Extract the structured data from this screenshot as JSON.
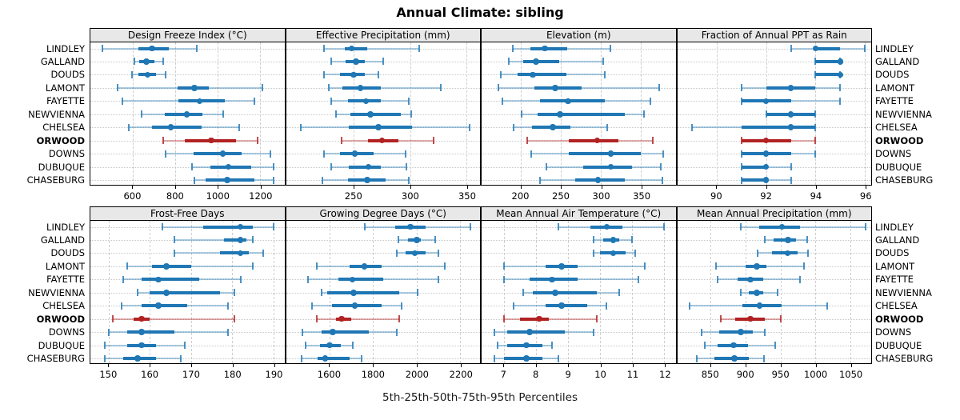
{
  "title": "Annual Climate: sibling",
  "caption": "5th-25th-50th-75th-95th Percentiles",
  "percentile_levels": [
    "5th",
    "25th",
    "50th",
    "75th",
    "95th"
  ],
  "sites": [
    "LINDLEY",
    "GALLAND",
    "DOUDS",
    "LAMONT",
    "FAYETTE",
    "NEWVIENNA",
    "CHELSEA",
    "ORWOOD",
    "DOWNS",
    "DUBUQUE",
    "CHASEBURG"
  ],
  "highlighted_site": "ORWOOD",
  "colors": {
    "series": "#1f77b4",
    "series_light": "rgba(31,119,180,0.38)",
    "series_cap": "rgba(31,119,180,0.8)",
    "highlight": "#b22222",
    "highlight_light": "rgba(178,34,34,0.38)",
    "highlight_cap": "rgba(178,34,34,0.8)",
    "strip_bg": "#e8e8e8",
    "grid": "#cccccc"
  },
  "chart_data": [
    {
      "type": "interval-dotplot",
      "title": "Design Freeze Index (°C)",
      "xlim": [
        400,
        1315
      ],
      "ticks": [
        600,
        800,
        1000,
        1200
      ],
      "series": [
        {
          "name": "LINDLEY",
          "values": [
            455,
            625,
            690,
            770,
            900
          ]
        },
        {
          "name": "GALLAND",
          "values": [
            608,
            630,
            665,
            700,
            745
          ]
        },
        {
          "name": "DOUDS",
          "values": [
            595,
            625,
            670,
            710,
            755
          ]
        },
        {
          "name": "LAMONT",
          "values": [
            530,
            810,
            890,
            960,
            1210
          ]
        },
        {
          "name": "FAYETTE",
          "values": [
            550,
            815,
            915,
            1035,
            1175
          ]
        },
        {
          "name": "NEWVIENNA",
          "values": [
            640,
            750,
            855,
            930,
            1025
          ]
        },
        {
          "name": "CHELSEA",
          "values": [
            580,
            690,
            780,
            925,
            1100
          ]
        },
        {
          "name": "ORWOOD",
          "values": [
            745,
            845,
            970,
            1085,
            1190
          ]
        },
        {
          "name": "DOWNS",
          "values": [
            755,
            885,
            1025,
            1115,
            1250
          ]
        },
        {
          "name": "DUBUQUE",
          "values": [
            880,
            965,
            1050,
            1160,
            1265
          ]
        },
        {
          "name": "CHASEBURG",
          "values": [
            890,
            945,
            1045,
            1175,
            1265
          ]
        }
      ]
    },
    {
      "type": "interval-dotplot",
      "title": "Effective Precipitation (mm)",
      "xlim": [
        190,
        362
      ],
      "ticks": [
        250,
        300,
        350
      ],
      "series": [
        {
          "name": "LINDLEY",
          "values": [
            224,
            242,
            248,
            262,
            308
          ]
        },
        {
          "name": "GALLAND",
          "values": [
            230,
            243,
            252,
            260,
            276
          ]
        },
        {
          "name": "DOUDS",
          "values": [
            224,
            238,
            250,
            260,
            272
          ]
        },
        {
          "name": "LAMONT",
          "values": [
            228,
            240,
            256,
            274,
            327
          ]
        },
        {
          "name": "FAYETTE",
          "values": [
            230,
            245,
            261,
            274,
            299
          ]
        },
        {
          "name": "NEWVIENNA",
          "values": [
            234,
            247,
            265,
            292,
            301
          ]
        },
        {
          "name": "CHELSEA",
          "values": [
            203,
            246,
            272,
            302,
            353
          ]
        },
        {
          "name": "ORWOOD",
          "values": [
            239,
            263,
            275,
            290,
            321
          ]
        },
        {
          "name": "DOWNS",
          "values": [
            224,
            238,
            251,
            268,
            296
          ]
        },
        {
          "name": "DUBUQUE",
          "values": [
            230,
            246,
            263,
            274,
            297
          ]
        },
        {
          "name": "CHASEBURG",
          "values": [
            222,
            245,
            262,
            278,
            299
          ]
        }
      ]
    },
    {
      "type": "interval-dotplot",
      "title": "Elevation (m)",
      "xlim": [
        151,
        393
      ],
      "ticks": [
        200,
        250,
        300,
        350
      ],
      "series": [
        {
          "name": "LINDLEY",
          "values": [
            190,
            212,
            230,
            258,
            312
          ]
        },
        {
          "name": "GALLAND",
          "values": [
            185,
            203,
            219,
            248,
            303
          ]
        },
        {
          "name": "DOUDS",
          "values": [
            175,
            196,
            215,
            257,
            305
          ]
        },
        {
          "name": "LAMONT",
          "values": [
            172,
            217,
            243,
            276,
            373
          ]
        },
        {
          "name": "FAYETTE",
          "values": [
            177,
            224,
            259,
            305,
            362
          ]
        },
        {
          "name": "NEWVIENNA",
          "values": [
            201,
            221,
            249,
            330,
            354
          ]
        },
        {
          "name": "CHELSEA",
          "values": [
            191,
            214,
            240,
            262,
            308
          ]
        },
        {
          "name": "ORWOOD",
          "values": [
            208,
            260,
            295,
            322,
            365
          ]
        },
        {
          "name": "DOWNS",
          "values": [
            213,
            260,
            312,
            350,
            378
          ]
        },
        {
          "name": "DUBUQUE",
          "values": [
            232,
            278,
            312,
            339,
            375
          ]
        },
        {
          "name": "CHASEBURG",
          "values": [
            224,
            268,
            296,
            330,
            377
          ]
        }
      ]
    },
    {
      "type": "interval-dotplot",
      "title": "Fraction of Annual PPT as Rain",
      "xlim": [
        88.4,
        96.25
      ],
      "ticks": [
        90,
        92,
        94,
        96
      ],
      "series": [
        {
          "name": "LINDLEY",
          "values": [
            93,
            94,
            94,
            95,
            96
          ]
        },
        {
          "name": "GALLAND",
          "values": [
            94,
            94,
            95,
            95,
            95
          ]
        },
        {
          "name": "DOUDS",
          "values": [
            94,
            94,
            95,
            95,
            95
          ]
        },
        {
          "name": "LAMONT",
          "values": [
            91,
            92,
            93,
            94,
            95
          ]
        },
        {
          "name": "FAYETTE",
          "values": [
            91,
            91,
            92,
            93,
            95
          ]
        },
        {
          "name": "NEWVIENNA",
          "values": [
            92,
            92,
            93,
            94,
            94
          ]
        },
        {
          "name": "CHELSEA",
          "values": [
            89,
            91,
            93,
            94,
            94
          ]
        },
        {
          "name": "ORWOOD",
          "values": [
            91,
            91,
            92,
            93,
            94
          ]
        },
        {
          "name": "DOWNS",
          "values": [
            91,
            91,
            92,
            93,
            94
          ]
        },
        {
          "name": "DUBUQUE",
          "values": [
            91,
            91,
            92,
            92,
            93
          ]
        },
        {
          "name": "CHASEBURG",
          "values": [
            91,
            91,
            92,
            92,
            93
          ]
        }
      ]
    },
    {
      "type": "interval-dotplot",
      "title": "Frost-Free Days",
      "xlim": [
        145.5,
        192.7
      ],
      "ticks": [
        150,
        160,
        170,
        180,
        190
      ],
      "series": [
        {
          "name": "LINDLEY",
          "values": [
            163,
            173,
            182,
            185,
            190
          ]
        },
        {
          "name": "GALLAND",
          "values": [
            166,
            178,
            182,
            183.5,
            185
          ]
        },
        {
          "name": "DOUDS",
          "values": [
            166,
            177,
            182,
            184,
            187.5
          ]
        },
        {
          "name": "LAMONT",
          "values": [
            154.5,
            160.5,
            164,
            170,
            185
          ]
        },
        {
          "name": "FAYETTE",
          "values": [
            153.5,
            158,
            162,
            172,
            182
          ]
        },
        {
          "name": "NEWVIENNA",
          "values": [
            157,
            160,
            164,
            177,
            180.5
          ]
        },
        {
          "name": "CHELSEA",
          "values": [
            153,
            158,
            162,
            169,
            179
          ]
        },
        {
          "name": "ORWOOD",
          "values": [
            151,
            156,
            158,
            160,
            180.5
          ]
        },
        {
          "name": "DOWNS",
          "values": [
            150,
            154.5,
            158,
            166,
            179
          ]
        },
        {
          "name": "DUBUQUE",
          "values": [
            149,
            154.5,
            158,
            161.5,
            168.5
          ]
        },
        {
          "name": "CHASEBURG",
          "values": [
            149,
            153.5,
            157,
            161.5,
            167.5
          ]
        }
      ]
    },
    {
      "type": "interval-dotplot",
      "title": "Growing Degree Days (°C)",
      "xlim": [
        1400,
        2290
      ],
      "ticks": [
        1600,
        1800,
        2000,
        2200
      ],
      "series": [
        {
          "name": "LINDLEY",
          "values": [
            1760,
            1900,
            1970,
            2040,
            2245
          ]
        },
        {
          "name": "GALLAND",
          "values": [
            1915,
            1960,
            2000,
            2020,
            2085
          ]
        },
        {
          "name": "DOUDS",
          "values": [
            1910,
            1950,
            1990,
            2040,
            2100
          ]
        },
        {
          "name": "LAMONT",
          "values": [
            1540,
            1690,
            1760,
            1840,
            2130
          ]
        },
        {
          "name": "FAYETTE",
          "values": [
            1500,
            1640,
            1705,
            1845,
            2100
          ]
        },
        {
          "name": "NEWVIENNA",
          "values": [
            1565,
            1590,
            1710,
            1920,
            2005
          ]
        },
        {
          "name": "CHELSEA",
          "values": [
            1520,
            1610,
            1715,
            1840,
            1930
          ]
        },
        {
          "name": "ORWOOD",
          "values": [
            1540,
            1630,
            1655,
            1700,
            1920
          ]
        },
        {
          "name": "DOWNS",
          "values": [
            1475,
            1565,
            1615,
            1780,
            1910
          ]
        },
        {
          "name": "DUBUQUE",
          "values": [
            1490,
            1555,
            1600,
            1650,
            1705
          ]
        },
        {
          "name": "CHASEBURG",
          "values": [
            1470,
            1545,
            1580,
            1690,
            1745
          ]
        }
      ]
    },
    {
      "type": "interval-dotplot",
      "title": "Mean Annual Air Temperature (°C)",
      "xlim": [
        6.3,
        12.35
      ],
      "ticks": [
        7,
        8,
        9,
        10,
        11,
        12
      ],
      "series": [
        {
          "name": "LINDLEY",
          "values": [
            8.7,
            9.7,
            10.2,
            10.7,
            12.0
          ]
        },
        {
          "name": "GALLAND",
          "values": [
            9.8,
            10.1,
            10.4,
            10.6,
            11.0
          ]
        },
        {
          "name": "DOUDS",
          "values": [
            9.8,
            10.0,
            10.4,
            10.8,
            11.1
          ]
        },
        {
          "name": "LAMONT",
          "values": [
            7.0,
            8.3,
            8.8,
            9.3,
            11.4
          ]
        },
        {
          "name": "FAYETTE",
          "values": [
            7.0,
            7.8,
            8.5,
            9.3,
            11.2
          ]
        },
        {
          "name": "NEWVIENNA",
          "values": [
            7.6,
            7.9,
            8.6,
            9.9,
            10.6
          ]
        },
        {
          "name": "CHELSEA",
          "values": [
            7.3,
            8.3,
            8.8,
            9.6,
            10.2
          ]
        },
        {
          "name": "ORWOOD",
          "values": [
            7.0,
            7.5,
            8.1,
            8.4,
            9.9
          ]
        },
        {
          "name": "DOWNS",
          "values": [
            6.7,
            7.1,
            7.8,
            8.9,
            9.8
          ]
        },
        {
          "name": "DUBUQUE",
          "values": [
            6.8,
            7.1,
            7.7,
            8.2,
            8.5
          ]
        },
        {
          "name": "CHASEBURG",
          "values": [
            6.7,
            7.0,
            7.7,
            8.2,
            8.7
          ]
        }
      ]
    },
    {
      "type": "interval-dotplot",
      "title": "Mean Annual Precipitation (mm)",
      "xlim": [
        802,
        1080
      ],
      "ticks": [
        850,
        900,
        950,
        1000,
        1050
      ],
      "series": [
        {
          "name": "LINDLEY",
          "values": [
            893,
            920,
            952,
            978,
            1072
          ]
        },
        {
          "name": "GALLAND",
          "values": [
            927,
            940,
            961,
            972,
            988
          ]
        },
        {
          "name": "DOUDS",
          "values": [
            917,
            938,
            960,
            975,
            990
          ]
        },
        {
          "name": "LAMONT",
          "values": [
            858,
            900,
            916,
            930,
            984
          ]
        },
        {
          "name": "FAYETTE",
          "values": [
            860,
            888,
            907,
            925,
            978
          ]
        },
        {
          "name": "NEWVIENNA",
          "values": [
            893,
            905,
            916,
            925,
            946
          ]
        },
        {
          "name": "CHELSEA",
          "values": [
            820,
            895,
            920,
            952,
            1017
          ]
        },
        {
          "name": "ORWOOD",
          "values": [
            864,
            885,
            907,
            927,
            951
          ]
        },
        {
          "name": "DOWNS",
          "values": [
            837,
            862,
            893,
            910,
            927
          ]
        },
        {
          "name": "DUBUQUE",
          "values": [
            842,
            860,
            883,
            903,
            943
          ]
        },
        {
          "name": "CHASEBURG",
          "values": [
            830,
            855,
            884,
            905,
            926
          ]
        }
      ]
    }
  ]
}
